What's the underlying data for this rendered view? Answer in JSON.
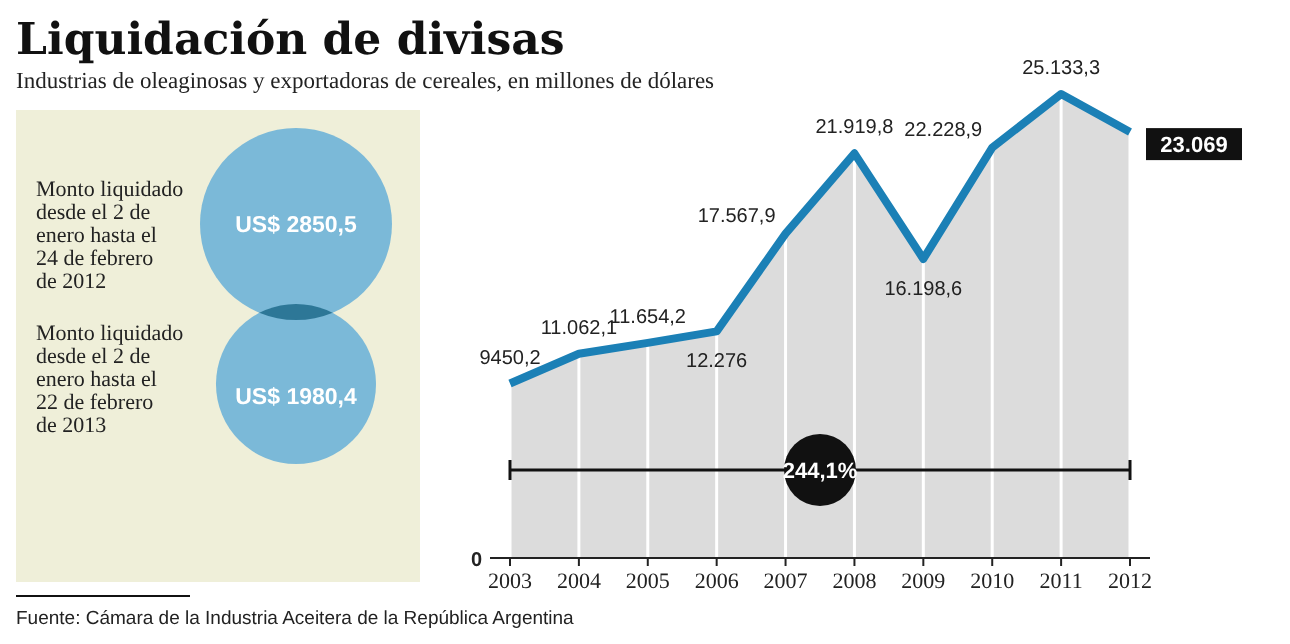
{
  "chart_data": [
    {
      "type": "other",
      "title": "Liquidación de divisas",
      "subtitle": "Industrias de oleaginosas y exportadoras de cereales, en millones de dólares",
      "categories": [
        "Monto liquidado desde el 2 de enero hasta el 24 de febrero de 2012",
        "Monto liquidado desde el 2 de enero hasta el 22 de febrero de 2013"
      ],
      "values": [
        2850.5,
        1980.4
      ],
      "value_labels": [
        "US$ 2850,5",
        "US$ 1980,4"
      ],
      "color": "#7bb9d8"
    },
    {
      "type": "area",
      "categories": [
        "2003",
        "2004",
        "2005",
        "2006",
        "2007",
        "2008",
        "2009",
        "2010",
        "2011",
        "2012"
      ],
      "series": [
        {
          "color": "#1b80b6",
          "values": [
            9450.2,
            11062.1,
            11654.2,
            12276,
            17567.9,
            21919.8,
            16198.6,
            22228.9,
            25133.3,
            23069
          ],
          "value_labels": [
            "9450,2",
            "11.062,1",
            "11.654,2",
            "12.276",
            "17.567,9",
            "21.919,8",
            "16.198,6",
            "22.228,9",
            "25.133,3",
            "23.069"
          ]
        }
      ],
      "ylim": [
        0,
        25133.3
      ],
      "grid": "x",
      "ref_lines": [
        {
          "axis": "y",
          "value": 4770,
          "color": "#111111"
        }
      ],
      "annotations": [
        "244,1%",
        "Fuente: Cámara de la Industria Aceitera de la República Argentina",
        {
          "text": "0",
          "x": "2003",
          "y": 0
        }
      ]
    }
  ]
}
